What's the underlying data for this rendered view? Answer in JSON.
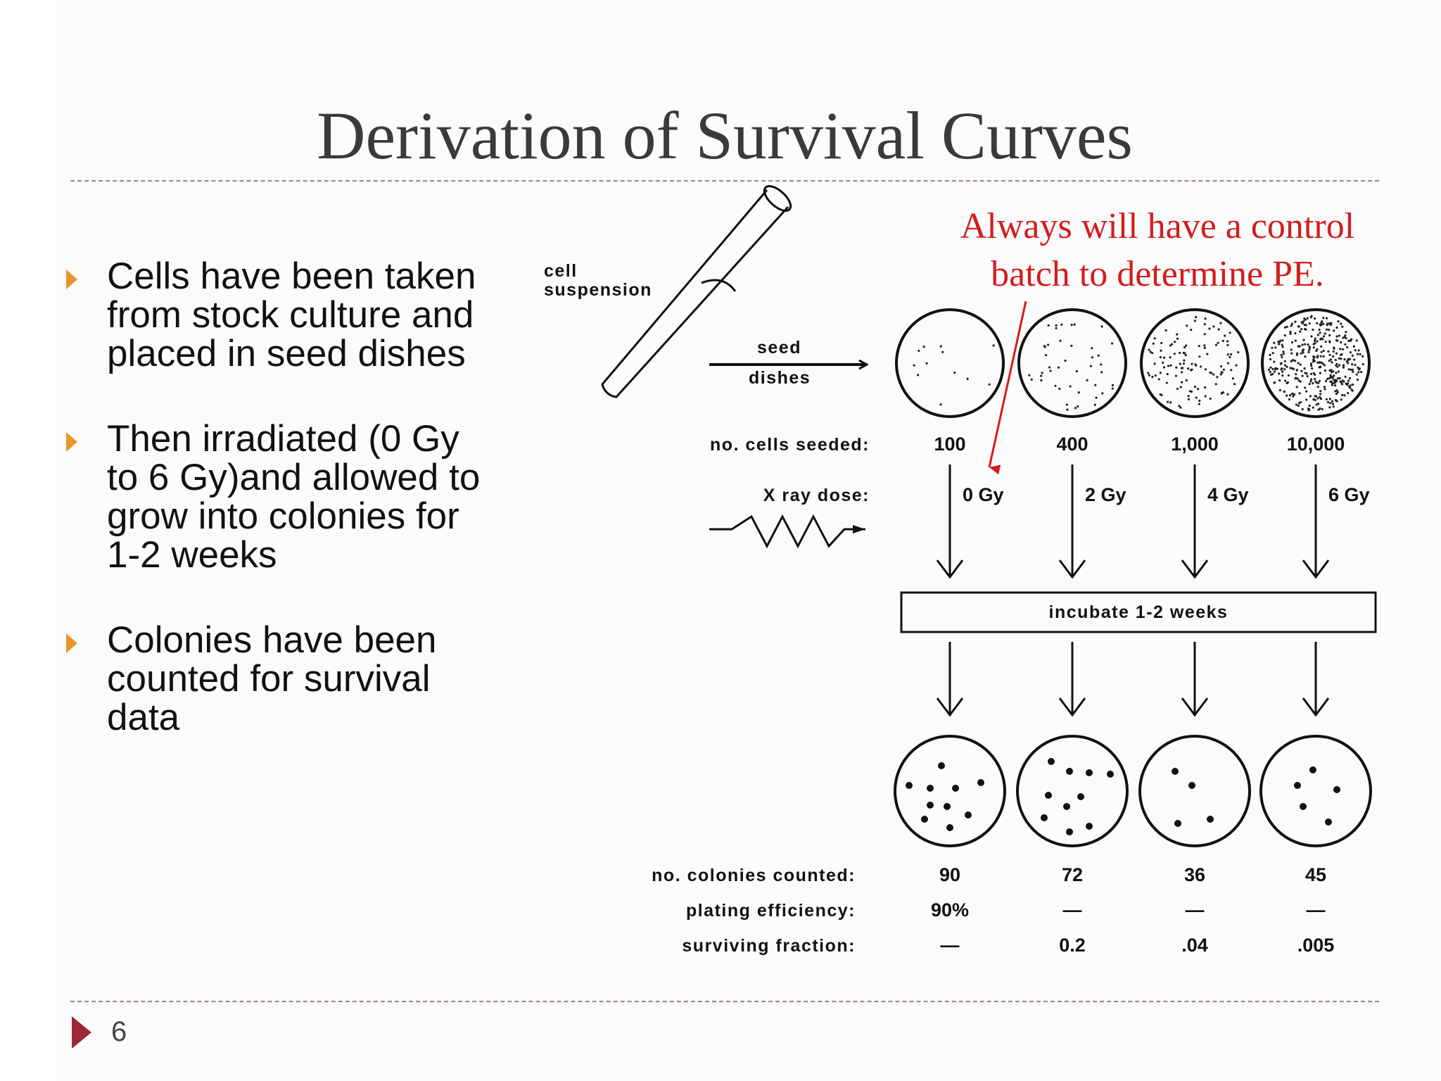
{
  "slide": {
    "title": "Derivation of Survival Curves",
    "page_number": "6",
    "accent_colors": {
      "bullet": "#e8952a",
      "footer_marker": "#9c2a36",
      "annotation": "#d41c1c"
    }
  },
  "bullets": [
    {
      "text": "Cells have been taken\nfrom stock culture and\nplaced in seed dishes"
    },
    {
      "text": "Then irradiated (0 Gy\nto 6 Gy)and allowed to\ngrow into colonies for\n1-2 weeks"
    },
    {
      "text": "Colonies have been\ncounted for survival\ndata"
    }
  ],
  "figure": {
    "tube_label_line1": "cell",
    "tube_label_line2": "suspension",
    "seed_label_line1": "seed",
    "seed_label_line2": "dishes",
    "cells_seeded_label": "no. cells seeded:",
    "xray_label": "X ray dose:",
    "incubate_label": "incubate 1-2 weeks",
    "colonies_label": "no. colonies counted:",
    "pe_label": "plating efficiency:",
    "sf_label": "surviving fraction:",
    "annotation_line1": "Always will have a control",
    "annotation_line2": "batch to determine PE.",
    "dishes": [
      {
        "cells_seeded": "100",
        "dose": "0 Gy",
        "colonies": "90",
        "plating_efficiency": "90%",
        "surviving_fraction": "—"
      },
      {
        "cells_seeded": "400",
        "dose": "2 Gy",
        "colonies": "72",
        "plating_efficiency": "—",
        "surviving_fraction": "0.2"
      },
      {
        "cells_seeded": "1,000",
        "dose": "4 Gy",
        "colonies": "36",
        "plating_efficiency": "—",
        "surviving_fraction": ".04"
      },
      {
        "cells_seeded": "10,000",
        "dose": "6 Gy",
        "colonies": "45",
        "plating_efficiency": "—",
        "surviving_fraction": ".005"
      }
    ]
  }
}
